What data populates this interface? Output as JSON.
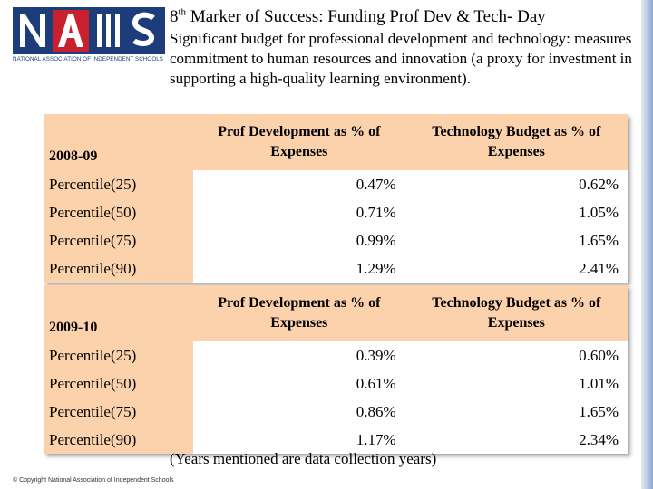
{
  "logo": {
    "letters": "NAIS",
    "caption": "NATIONAL ASSOCIATION OF INDEPENDENT SCHOOLS",
    "colors": {
      "navy": "#1c3d7a",
      "red": "#c8202f",
      "white": "#ffffff"
    }
  },
  "header": {
    "title_num": "8",
    "title_sup": "th",
    "title_rest": " Marker of Success: Funding Prof Dev & Tech- Day",
    "subtitle": "Significant budget for professional development and technology: measures commitment to human resources and innovation (a proxy for investment in supporting a high-quality learning environment)."
  },
  "tables": [
    {
      "year": "2008-09",
      "col1": "Prof Development as % of Expenses",
      "col2": "Technology Budget as % of Expenses",
      "rows": [
        {
          "label": "Percentile(25)",
          "pd": "0.47%",
          "tech": "0.62%"
        },
        {
          "label": "Percentile(50)",
          "pd": "0.71%",
          "tech": "1.05%"
        },
        {
          "label": "Percentile(75)",
          "pd": "0.99%",
          "tech": "1.65%"
        },
        {
          "label": "Percentile(90)",
          "pd": "1.29%",
          "tech": "2.41%"
        }
      ]
    },
    {
      "year": "2009-10",
      "col1": "Prof Development as % of Expenses",
      "col2": "Technology Budget as % of Expenses",
      "rows": [
        {
          "label": "Percentile(25)",
          "pd": "0.39%",
          "tech": "0.60%"
        },
        {
          "label": "Percentile(50)",
          "pd": "0.61%",
          "tech": "1.01%"
        },
        {
          "label": "Percentile(75)",
          "pd": "0.86%",
          "tech": "1.65%"
        },
        {
          "label": "Percentile(90)",
          "pd": "1.17%",
          "tech": "2.34%"
        }
      ]
    }
  ],
  "note": "(Years mentioned are data collection years)",
  "footer": "© Copyright National Association of Independent Schools",
  "colors": {
    "header_fill": "#fcd2ac",
    "accent_bar": "#8fa9cf"
  }
}
